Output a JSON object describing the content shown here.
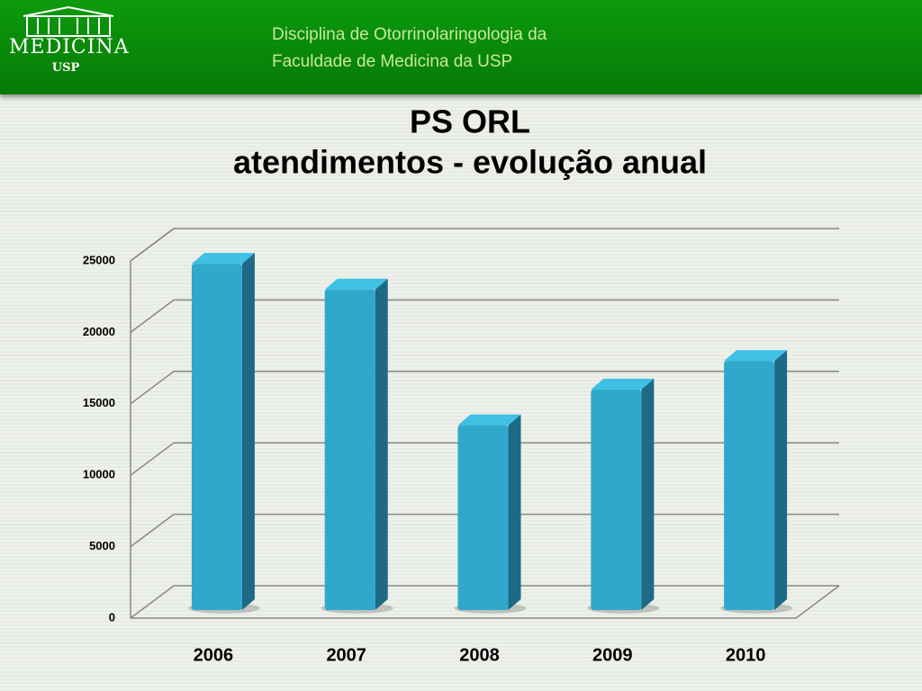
{
  "header": {
    "logo": "MEDICINA",
    "logo_sub": "USP",
    "lines": [
      "Disciplina de Otorrinolaringologia da",
      "Faculdade de Medicina da USP"
    ]
  },
  "chart_data": {
    "type": "bar3d",
    "title": "PS ORL",
    "subtitle": "atendimentos - evolução anual",
    "categories": [
      "2006",
      "2007",
      "2008",
      "2009",
      "2010"
    ],
    "values": [
      24800,
      23000,
      13500,
      16000,
      18000
    ],
    "color": "#2fa8cc",
    "ylim": [
      0,
      25000
    ],
    "yticks": [
      0,
      5000,
      10000,
      15000,
      20000,
      25000
    ],
    "grid": true
  }
}
